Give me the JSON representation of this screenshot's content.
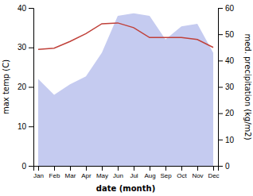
{
  "chart_data": {
    "type": "line",
    "xlabel": "date (month)",
    "ylabel": "max temp (C)",
    "y2label": "med. precipitation (kg/m2)",
    "categories": [
      "Jan",
      "Feb",
      "Mar",
      "Apr",
      "May",
      "Jun",
      "Jul",
      "Aug",
      "Sep",
      "Oct",
      "Nov",
      "Dec"
    ],
    "series": [
      {
        "type": "area",
        "axis": "y2",
        "color": "#c5cbf0",
        "values": [
          33,
          27,
          31,
          34,
          43,
          57,
          58,
          57,
          48,
          53,
          54,
          43
        ]
      },
      {
        "type": "line",
        "color": "#c0413a",
        "values": [
          29.5,
          29.8,
          31.5,
          33.5,
          36.0,
          36.2,
          35.0,
          32.5,
          32.5,
          32.5,
          32.0,
          30.0
        ]
      }
    ],
    "ylim": [
      0,
      40
    ],
    "yticks": [
      0,
      10,
      20,
      30,
      40
    ],
    "y2lim": [
      0,
      60
    ],
    "y2ticks": [
      0,
      10,
      20,
      30,
      40,
      50,
      60
    ]
  }
}
